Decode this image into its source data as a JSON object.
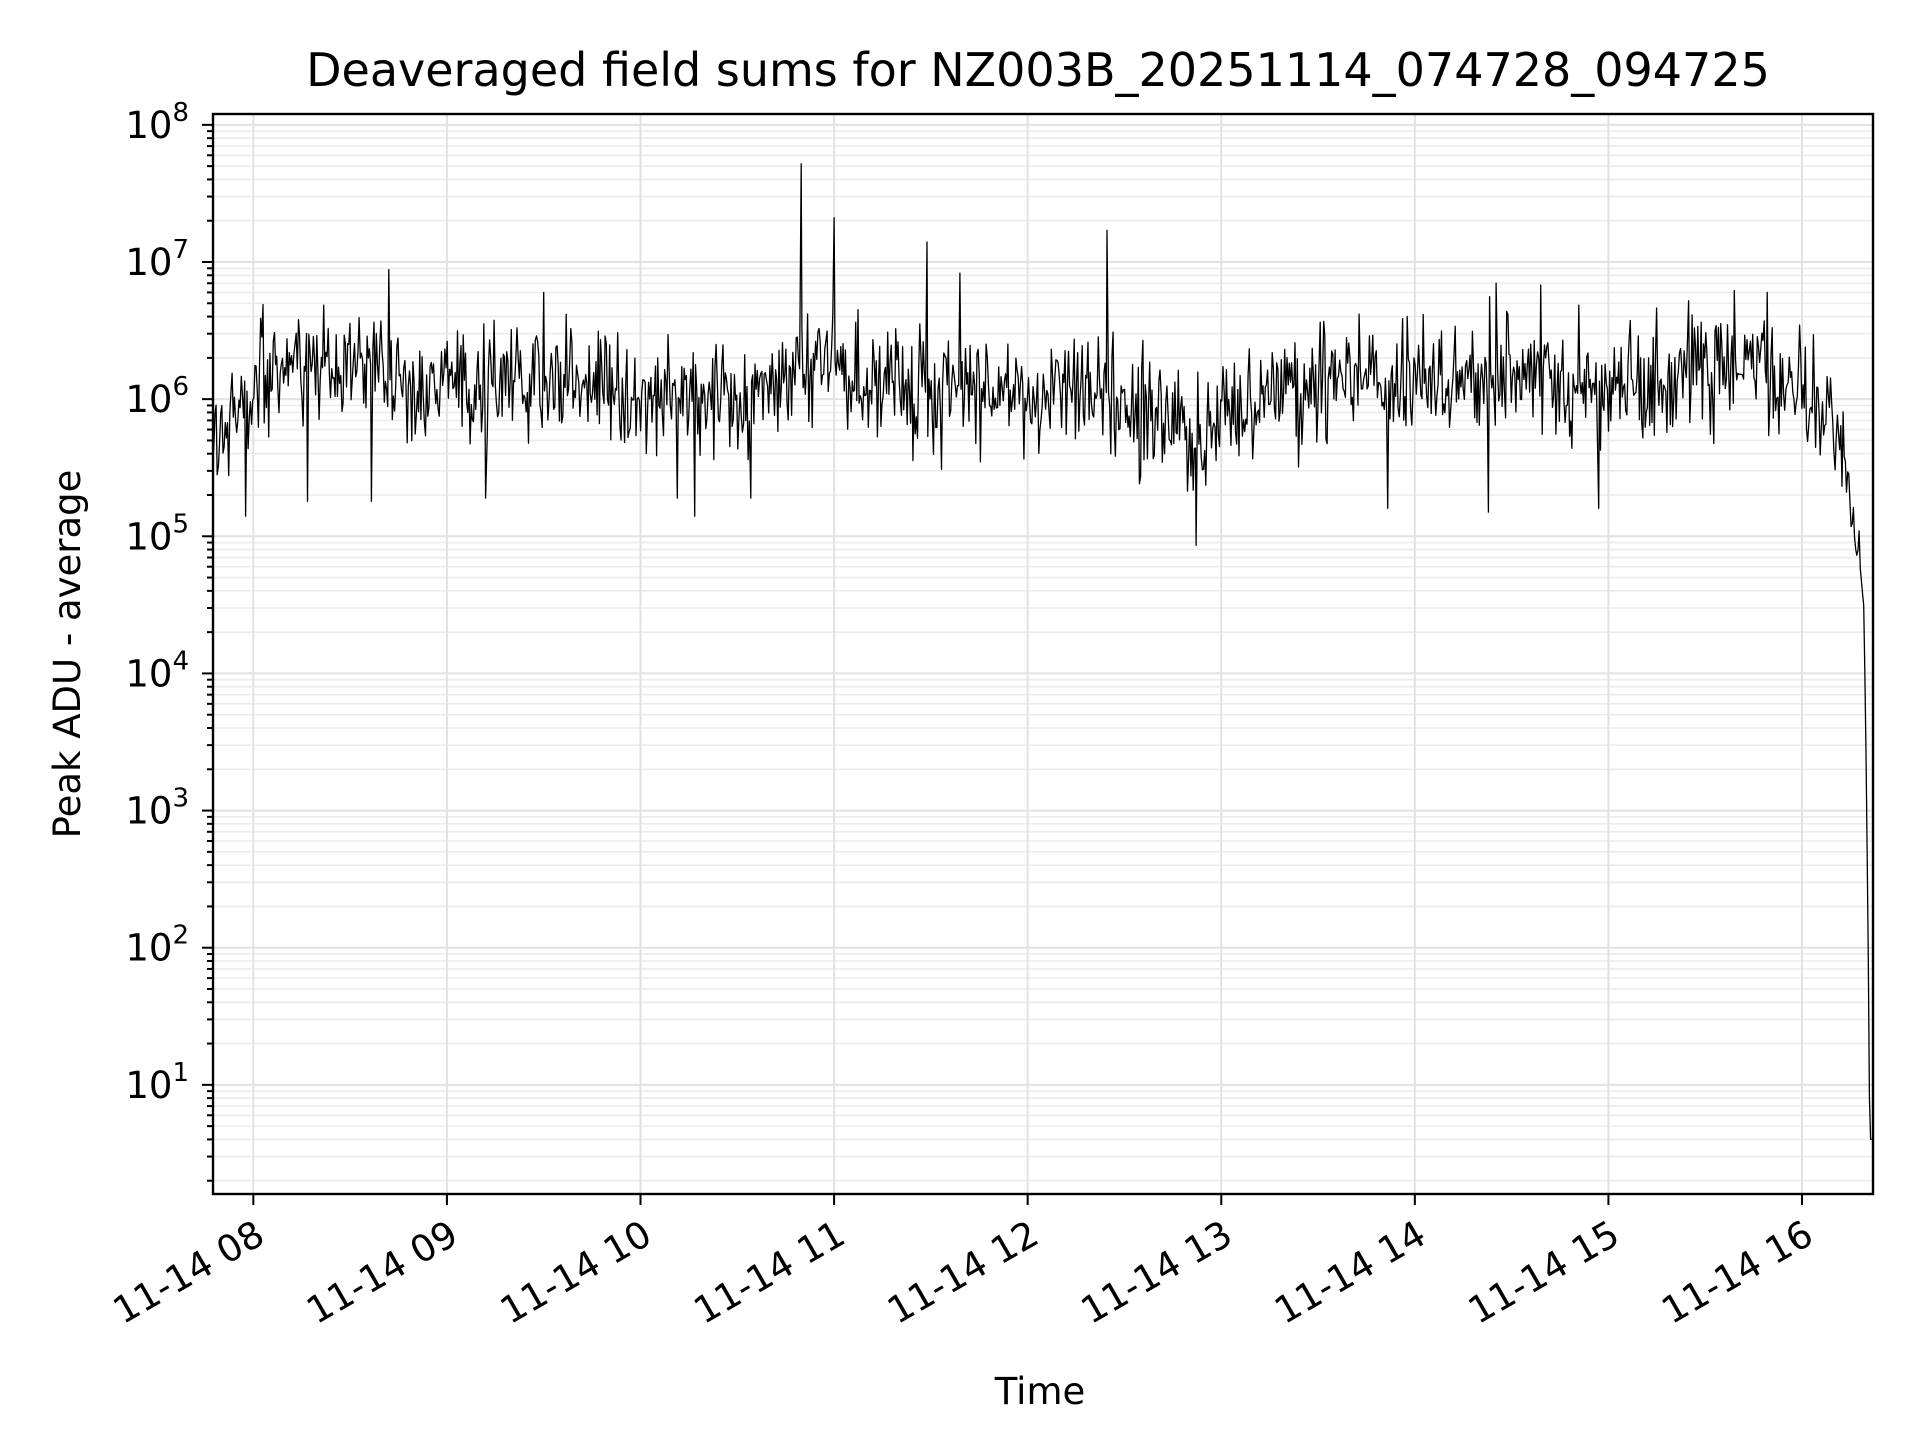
{
  "chart_data": {
    "type": "line",
    "title": "Deaveraged field sums for NZ003B_20251114_074728_094725",
    "xlabel": "Time",
    "ylabel": "Peak ADU - average",
    "yscale": "log",
    "ylim": [
      1.6,
      120000000.0
    ],
    "xlim": [
      "2025-11-14 07:47:30",
      "2025-11-14 16:22:00"
    ],
    "grid": "both",
    "line_color": "#000000",
    "grid_color": "#e2e2e2",
    "x_ticks": [
      {
        "hour": 8,
        "label": "11-14 08"
      },
      {
        "hour": 9,
        "label": "11-14 09"
      },
      {
        "hour": 10,
        "label": "11-14 10"
      },
      {
        "hour": 11,
        "label": "11-14 11"
      },
      {
        "hour": 12,
        "label": "11-14 12"
      },
      {
        "hour": 13,
        "label": "11-14 13"
      },
      {
        "hour": 14,
        "label": "11-14 14"
      },
      {
        "hour": 15,
        "label": "11-14 15"
      },
      {
        "hour": 16,
        "label": "11-14 16"
      }
    ],
    "y_ticks": [
      {
        "exp": 1,
        "base": "10",
        "sup": "1"
      },
      {
        "exp": 2,
        "base": "10",
        "sup": "2"
      },
      {
        "exp": 3,
        "base": "10",
        "sup": "3"
      },
      {
        "exp": 4,
        "base": "10",
        "sup": "4"
      },
      {
        "exp": 5,
        "base": "10",
        "sup": "5"
      },
      {
        "exp": 6,
        "base": "10",
        "sup": "6"
      },
      {
        "exp": 7,
        "base": "10",
        "sup": "7"
      },
      {
        "exp": 8,
        "base": "10",
        "sup": "8"
      }
    ],
    "series": [
      {
        "name": "Peak ADU - average",
        "x_unit": "hour",
        "x": [
          7.79,
          7.8,
          7.85,
          7.9,
          7.95,
          8.0,
          8.1,
          8.2,
          8.3,
          8.4,
          8.5,
          8.6,
          8.65,
          8.7,
          8.8,
          8.9,
          9.0,
          9.1,
          9.2,
          9.3,
          9.5,
          9.7,
          9.9,
          10.0,
          10.2,
          10.3,
          10.4,
          10.55,
          10.7,
          10.8,
          10.83,
          10.9,
          10.95,
          11.0,
          11.1,
          11.2,
          11.3,
          11.48,
          11.6,
          11.7,
          11.8,
          12.0,
          12.2,
          12.35,
          12.4,
          12.5,
          12.6,
          12.7,
          12.8,
          12.87,
          12.9,
          12.95,
          13.0,
          13.1,
          13.2,
          13.3,
          13.5,
          13.7,
          13.8,
          13.9,
          14.0,
          14.2,
          14.35,
          14.4,
          14.5,
          14.6,
          14.8,
          15.0,
          15.2,
          15.4,
          15.6,
          15.7,
          15.8,
          15.9,
          16.0,
          16.1,
          16.15,
          16.2,
          16.25,
          16.28,
          16.3,
          16.32,
          16.33,
          16.34,
          16.35,
          16.36
        ],
        "y": [
          500000,
          600000,
          700000,
          800000,
          900000,
          1200000,
          1500000,
          1800000,
          1500000,
          1700000,
          1600000,
          2000000,
          1800000,
          1600000,
          1400000,
          1300000,
          1400000,
          1300000,
          1200000,
          1500000,
          1400000,
          1300000,
          1200000,
          1000000,
          1200000,
          1000000,
          1300000,
          1100000,
          1000000,
          1300000,
          1600000,
          1900000,
          2000000,
          1800000,
          1500000,
          1400000,
          1300000,
          1200000,
          1300000,
          1100000,
          1200000,
          1000000,
          900000,
          1100000,
          1000000,
          900000,
          800000,
          700000,
          600000,
          500000,
          550000,
          600000,
          600000,
          700000,
          900000,
          1200000,
          1500000,
          1600000,
          1500000,
          1000000,
          1200000,
          1400000,
          1500000,
          1600000,
          1500000,
          1400000,
          1300000,
          1200000,
          1300000,
          1500000,
          1600000,
          1800000,
          1600000,
          1500000,
          1200000,
          1000000,
          800000,
          500000,
          200000,
          100000,
          60000,
          30000,
          3000,
          200,
          4,
          4
        ]
      }
    ],
    "spikes": [
      {
        "x": 7.96,
        "y": 140000
      },
      {
        "x": 8.28,
        "y": 180000
      },
      {
        "x": 8.61,
        "y": 180000
      },
      {
        "x": 8.7,
        "y": 8800000
      },
      {
        "x": 9.2,
        "y": 190000
      },
      {
        "x": 9.5,
        "y": 6000000
      },
      {
        "x": 10.19,
        "y": 190000
      },
      {
        "x": 10.28,
        "y": 140000
      },
      {
        "x": 10.57,
        "y": 190000
      },
      {
        "x": 10.83,
        "y": 52000000
      },
      {
        "x": 11.0,
        "y": 21000000
      },
      {
        "x": 11.48,
        "y": 14000000
      },
      {
        "x": 11.65,
        "y": 8300000
      },
      {
        "x": 12.41,
        "y": 17000000
      },
      {
        "x": 12.87,
        "y": 86000
      },
      {
        "x": 13.86,
        "y": 160000
      },
      {
        "x": 14.38,
        "y": 150000
      },
      {
        "x": 14.42,
        "y": 7000000
      },
      {
        "x": 14.65,
        "y": 6800000
      },
      {
        "x": 14.95,
        "y": 160000
      },
      {
        "x": 15.65,
        "y": 6200000
      },
      {
        "x": 15.82,
        "y": 6000000
      }
    ]
  }
}
